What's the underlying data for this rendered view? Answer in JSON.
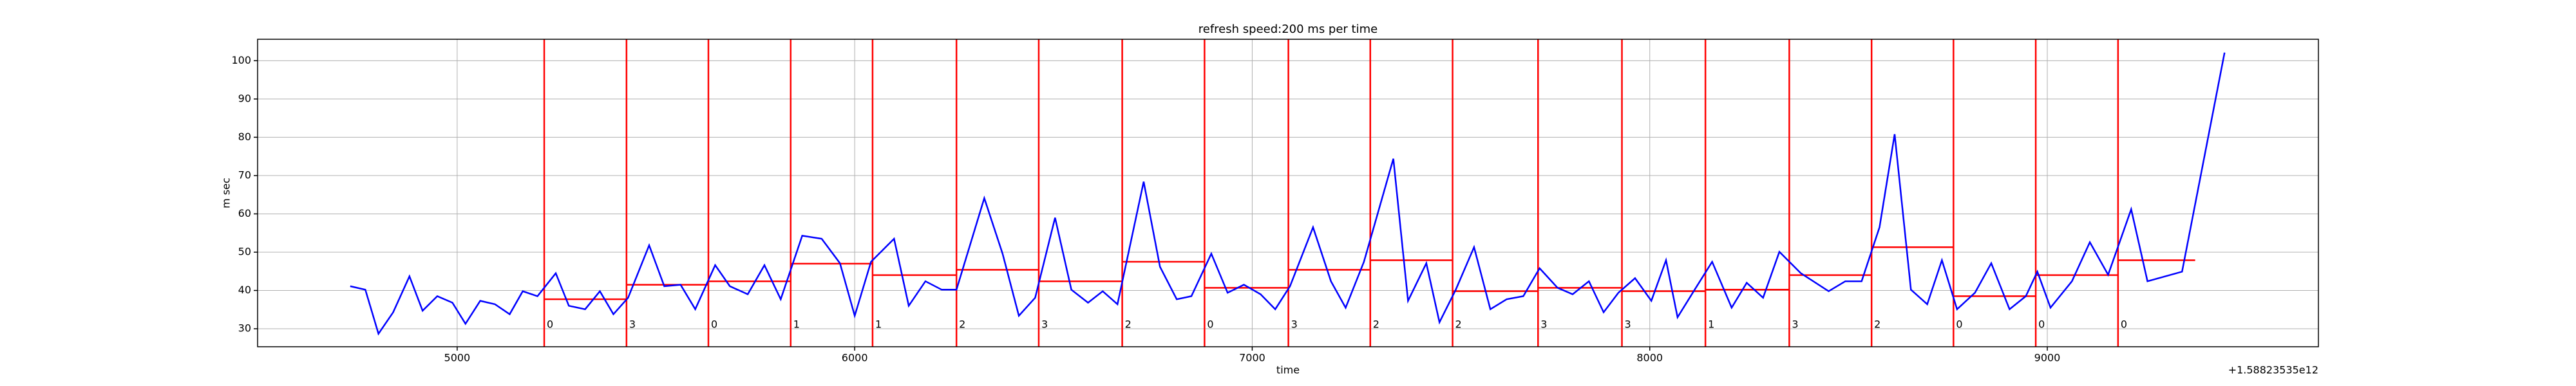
{
  "chart_data": {
    "type": "line",
    "title": "refresh speed:200 ms per time",
    "xlabel": "time",
    "ylabel": "m sec",
    "x_offset_label": "+1.58823535e12",
    "color": "#0000ff",
    "grid": true,
    "xlim": [
      4498,
      9682
    ],
    "ylim": [
      25.3,
      105.6
    ],
    "xticks": [
      5000,
      6000,
      7000,
      8000,
      9000
    ],
    "yticks": [
      30,
      40,
      50,
      60,
      70,
      80,
      90,
      100
    ],
    "x": [
      4731,
      4769,
      4802,
      4839,
      4880,
      4913,
      4950,
      4988,
      5021,
      5058,
      5095,
      5132,
      5165,
      5202,
      5248,
      5281,
      5322,
      5359,
      5393,
      5430,
      5483,
      5521,
      5562,
      5599,
      5649,
      5686,
      5731,
      5773,
      5814,
      5868,
      5917,
      5963,
      6000,
      6041,
      6099,
      6136,
      6178,
      6219,
      6256,
      6326,
      6372,
      6413,
      6454,
      6504,
      6545,
      6587,
      6624,
      6661,
      6727,
      6768,
      6810,
      6847,
      6897,
      6938,
      6979,
      7021,
      7058,
      7095,
      7153,
      7198,
      7235,
      7281,
      7355,
      7392,
      7438,
      7471,
      7512,
      7558,
      7599,
      7640,
      7682,
      7723,
      7768,
      7806,
      7847,
      7884,
      7921,
      7963,
      8004,
      8041,
      8070,
      8116,
      8157,
      8206,
      8244,
      8285,
      8326,
      8380,
      8450,
      8492,
      8533,
      8578,
      8616,
      8657,
      8698,
      8735,
      8773,
      8818,
      8859,
      8905,
      8946,
      8975,
      9008,
      9062,
      9107,
      9153,
      9211,
      9252,
      9339,
      9446
    ],
    "values": [
      41.1,
      40.2,
      28.7,
      34.3,
      43.7,
      34.7,
      38.5,
      36.8,
      31.3,
      37.3,
      36.4,
      33.8,
      39.8,
      38.5,
      44.5,
      36.0,
      35.1,
      39.8,
      33.8,
      38.1,
      51.8,
      41.1,
      41.5,
      35.1,
      46.6,
      41.1,
      39.0,
      46.6,
      37.7,
      54.3,
      53.5,
      47.1,
      33.4,
      47.5,
      53.5,
      36.0,
      42.4,
      40.2,
      40.2,
      64.1,
      49.6,
      33.4,
      38.1,
      59.0,
      40.2,
      36.8,
      39.8,
      36.4,
      68.4,
      46.2,
      37.7,
      38.5,
      49.6,
      39.4,
      41.5,
      39.0,
      35.1,
      41.1,
      56.5,
      42.4,
      35.5,
      47.5,
      74.4,
      37.3,
      47.1,
      31.7,
      40.2,
      51.3,
      35.1,
      37.7,
      38.5,
      45.8,
      40.7,
      39.0,
      42.4,
      34.3,
      39.4,
      43.2,
      37.3,
      47.9,
      33.0,
      40.7,
      47.5,
      35.5,
      42.0,
      38.1,
      50.1,
      44.5,
      39.8,
      42.4,
      42.4,
      56.5,
      80.8,
      40.2,
      36.4,
      47.9,
      35.1,
      39.4,
      47.1,
      35.1,
      38.5,
      44.9,
      35.5,
      42.4,
      52.6,
      44.1,
      61.2,
      42.4,
      44.9,
      102.1
    ],
    "markers": {
      "color": "#ff0000",
      "x": [
        5219,
        5426,
        5632,
        5839,
        6045,
        6256,
        6463,
        6673,
        6880,
        7091,
        7297,
        7504,
        7719,
        7930,
        8140,
        8351,
        8558,
        8764,
        8971,
        9178
      ],
      "labels": [
        "0",
        "3",
        "0",
        "1",
        "1",
        "2",
        "3",
        "2",
        "0",
        "3",
        "2",
        "2",
        "3",
        "3",
        "1",
        "3",
        "2",
        "0",
        "0",
        "0"
      ]
    },
    "segments": {
      "color": "#ff0000",
      "x0": [
        5219,
        5426,
        5632,
        5839,
        6045,
        6256,
        6463,
        6673,
        6880,
        7091,
        7297,
        7504,
        7719,
        7930,
        8140,
        8351,
        8558,
        8764,
        8971,
        9178
      ],
      "x1": [
        5426,
        5632,
        5839,
        6045,
        6256,
        6463,
        6673,
        6880,
        7091,
        7297,
        7504,
        7719,
        7930,
        8140,
        8351,
        8558,
        8764,
        8971,
        9178,
        9372
      ],
      "values": [
        37.7,
        41.5,
        42.4,
        47.0,
        44.0,
        45.4,
        42.4,
        47.5,
        40.7,
        45.4,
        47.9,
        39.8,
        40.7,
        39.8,
        40.2,
        44.0,
        51.3,
        38.5,
        44.0,
        47.9
      ]
    }
  }
}
